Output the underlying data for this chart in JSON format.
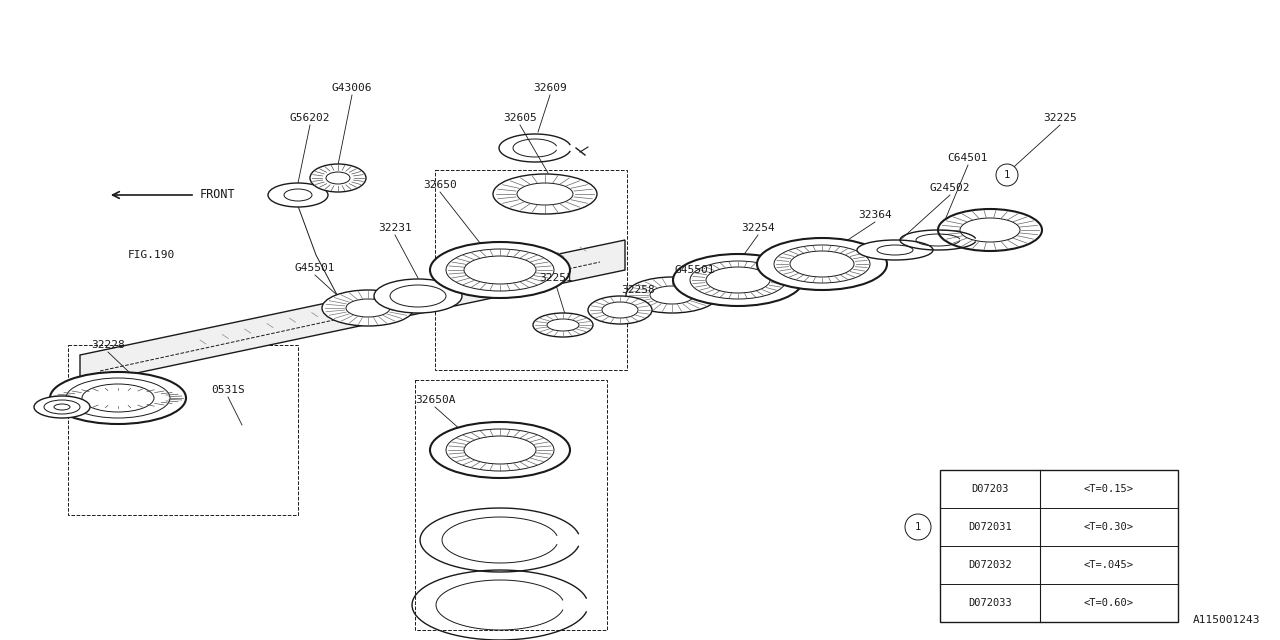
{
  "bg_color": "#ffffff",
  "line_color": "#1a1a1a",
  "fig_w": 12.8,
  "fig_h": 6.4,
  "dpi": 100,
  "diagram_id": "A115001243",
  "table": {
    "rows": [
      {
        "part": "D07203",
        "spec": "<T=0.15>"
      },
      {
        "part": "D072031",
        "spec": "<T=0.30>"
      },
      {
        "part": "D072032",
        "spec": "<T=.045>"
      },
      {
        "part": "D072033",
        "spec": "<T=0.60>"
      }
    ],
    "circle_row": 1,
    "circle_label": "1"
  }
}
